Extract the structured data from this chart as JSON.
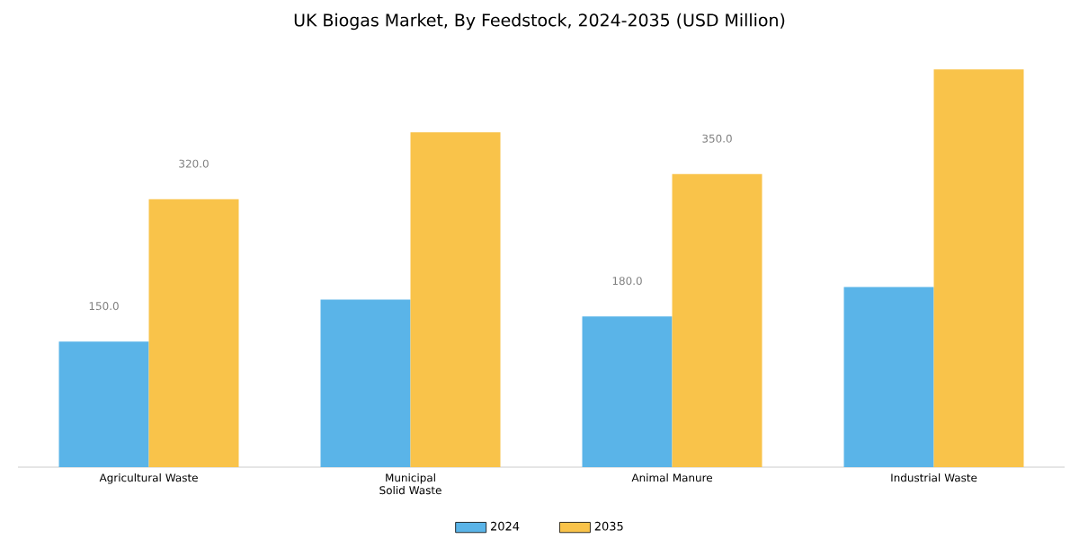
{
  "chart_data": {
    "type": "bar",
    "title": "UK Biogas Market, By Feedstock, 2024-2035 (USD Million)",
    "categories": [
      "Agricultural Waste",
      "Municipal Solid Waste",
      "Animal Manure",
      "Industrial Waste"
    ],
    "series": [
      {
        "name": "2024",
        "color": "#5ab4e8",
        "values": [
          150,
          200,
          180,
          215
        ],
        "value_labels": [
          "150.0",
          null,
          "180.0",
          null
        ]
      },
      {
        "name": "2035",
        "color": "#f9c34a",
        "values": [
          320,
          400,
          350,
          475
        ],
        "value_labels": [
          "320.0",
          null,
          "350.0",
          null
        ]
      }
    ],
    "legend": "bottom"
  }
}
